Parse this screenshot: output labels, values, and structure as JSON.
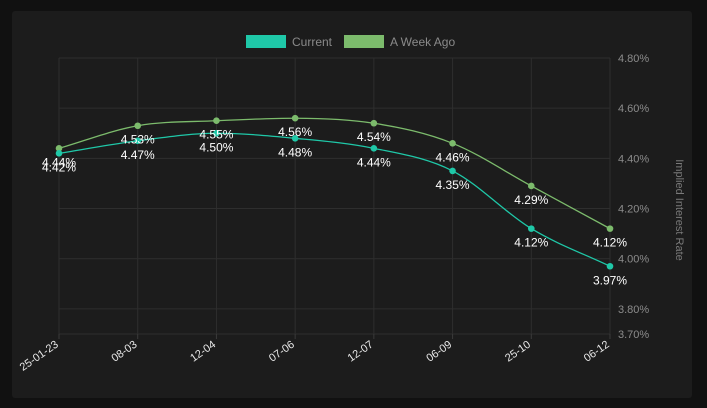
{
  "chart_data": {
    "type": "line",
    "categories": [
      "25-01-23",
      "08-03",
      "12-04",
      "07-06",
      "12-07",
      "06-09",
      "25-10",
      "06-12"
    ],
    "series": [
      {
        "name": "Current",
        "color": "#1fc8a8",
        "values": [
          4.42,
          4.47,
          4.5,
          4.48,
          4.44,
          4.35,
          4.12,
          3.97
        ],
        "labels": [
          "4.42%",
          "4.47%",
          "4.50%",
          "4.48%",
          "4.44%",
          "4.35%",
          "4.12%",
          "3.97%"
        ]
      },
      {
        "name": "A Week Ago",
        "color": "#7cbb6c",
        "values": [
          4.44,
          4.53,
          4.55,
          4.56,
          4.54,
          4.46,
          4.29,
          4.12
        ],
        "labels": [
          "4.44%",
          "4.53%",
          "4.55%",
          "4.56%",
          "4.54%",
          "4.46%",
          "4.29%",
          "4.12%"
        ]
      }
    ],
    "y_axis": {
      "title": "Implied Interest Rate",
      "position": "right",
      "ticks": [
        4.8,
        4.6,
        4.4,
        4.2,
        4.0,
        3.8,
        3.7
      ],
      "tick_labels": [
        "4.80%",
        "4.60%",
        "4.40%",
        "4.20%",
        "4.00%",
        "3.80%",
        "3.70%"
      ],
      "ylim": [
        3.7,
        4.8
      ]
    },
    "legend": "top-center",
    "grid": true,
    "title": "",
    "xlabel": ""
  }
}
